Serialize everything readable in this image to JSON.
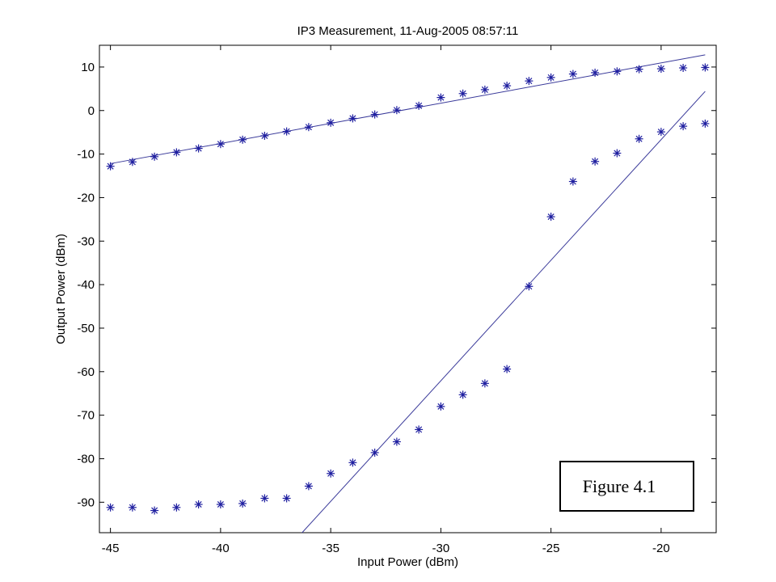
{
  "chart_data": {
    "type": "scatter",
    "title": "IP3 Measurement, 11-Aug-2005 08:57:11",
    "xlabel": "Input Power (dBm)",
    "ylabel": "Output Power (dBm)",
    "xlim": [
      -45.5,
      -17.5
    ],
    "ylim": [
      -97,
      15
    ],
    "grid": false,
    "x_ticks": [
      -45,
      -40,
      -35,
      -30,
      -25,
      -20
    ],
    "y_ticks": [
      10,
      0,
      -10,
      -20,
      -30,
      -40,
      -50,
      -60,
      -70,
      -80,
      -90
    ],
    "marker": "*",
    "marker_color": "#1f1fa0",
    "line_color": "#3a3a9a",
    "series": [
      {
        "marker": "*",
        "x": [
          -45,
          -44,
          -43,
          -42,
          -41,
          -40,
          -39,
          -38,
          -37,
          -36,
          -35,
          -34,
          -33,
          -32,
          -31,
          -30,
          -29,
          -28,
          -27,
          -26,
          -25,
          -24,
          -23,
          -22,
          -21,
          -20,
          -19,
          -18
        ],
        "y": [
          -12.8,
          -11.8,
          -10.6,
          -9.6,
          -8.7,
          -7.7,
          -6.7,
          -5.8,
          -4.8,
          -3.8,
          -2.8,
          -1.8,
          -0.9,
          0.1,
          1.1,
          3.0,
          3.9,
          4.8,
          5.7,
          6.8,
          7.6,
          8.4,
          8.7,
          9.0,
          9.5,
          9.6,
          9.8,
          9.9
        ]
      },
      {
        "marker": "*",
        "x": [
          -45,
          -44,
          -43,
          -42,
          -41,
          -40,
          -39,
          -38,
          -37,
          -36,
          -35,
          -34,
          -33,
          -32,
          -31,
          -30,
          -29,
          -28,
          -27,
          -26,
          -25,
          -24,
          -23,
          -22,
          -21,
          -20,
          -19,
          -18
        ],
        "y": [
          -91.2,
          -91.2,
          -91.9,
          -91.2,
          -90.5,
          -90.5,
          -90.3,
          -89.1,
          -89.1,
          -86.3,
          -83.4,
          -80.9,
          -78.6,
          -76.1,
          -73.3,
          -68.0,
          -65.3,
          -62.7,
          -59.4,
          -40.4,
          -24.4,
          -16.3,
          -11.7,
          -9.8,
          -6.5,
          -4.9,
          -3.6,
          -3.0
        ]
      }
    ],
    "fit_lines": [
      {
        "x": [
          -45,
          -18
        ],
        "y": [
          -12.2,
          12.8
        ]
      },
      {
        "x": [
          -36.3,
          -18
        ],
        "y": [
          -97,
          4.4
        ]
      }
    ],
    "annotation": {
      "text": "Figure 4.1"
    }
  }
}
